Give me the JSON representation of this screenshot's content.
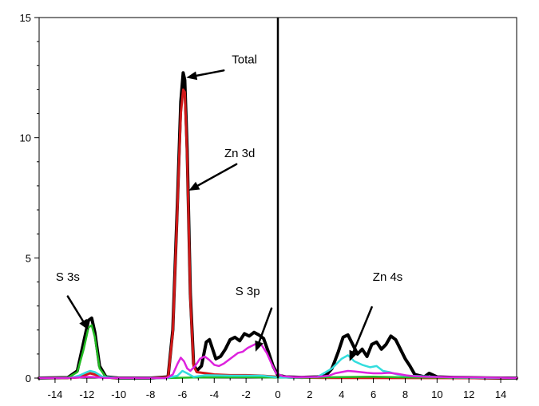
{
  "chart_data": {
    "type": "line",
    "title": "",
    "xlabel": "",
    "ylabel": "",
    "xlim": [
      -15,
      15
    ],
    "ylim": [
      0,
      15
    ],
    "x_ticks": [
      -14,
      -12,
      -10,
      -8,
      -6,
      -4,
      -2,
      0,
      2,
      4,
      6,
      8,
      10,
      12,
      14
    ],
    "x_tick_labels": [
      "-14",
      "-12",
      "-10",
      "-8",
      "-6",
      "-4",
      "-2",
      "0",
      "2",
      "4",
      "6",
      "8",
      "10",
      "12",
      "14"
    ],
    "y_ticks": [
      0,
      5,
      10,
      15
    ],
    "y_tick_labels": [
      "0",
      "5",
      "10",
      "15"
    ],
    "fermi_level_x": 0,
    "series": [
      {
        "color": "#000000",
        "x": [
          -15,
          -13.2,
          -12.6,
          -12.2,
          -11.9,
          -11.7,
          -11.5,
          -11.2,
          -10.8,
          -10,
          -8,
          -6.9,
          -6.6,
          -6.3,
          -6.1,
          -5.95,
          -5.85,
          -5.7,
          -5.5,
          -5.3,
          -5.1,
          -4.8,
          -4.5,
          -4.3,
          -4.1,
          -3.9,
          -3.6,
          -3.3,
          -3,
          -2.7,
          -2.4,
          -2.1,
          -1.8,
          -1.5,
          -1.2,
          -0.9,
          -0.6,
          -0.3,
          0,
          0.5,
          1.5,
          2.5,
          3,
          3.4,
          3.8,
          4.1,
          4.4,
          4.7,
          5.0,
          5.3,
          5.6,
          5.9,
          6.2,
          6.5,
          6.8,
          7.1,
          7.4,
          7.7,
          8.0,
          8.3,
          8.6,
          8.9,
          9.2,
          9.5,
          10.0,
          11,
          12,
          13,
          14,
          15
        ],
        "y": [
          0,
          0.02,
          0.3,
          1.5,
          2.4,
          2.5,
          1.9,
          0.5,
          0.05,
          0,
          0,
          0.05,
          2.0,
          7.5,
          11.5,
          12.7,
          12.4,
          9.5,
          3.5,
          0.6,
          0.3,
          0.5,
          1.5,
          1.6,
          1.2,
          0.8,
          0.9,
          1.2,
          1.6,
          1.7,
          1.55,
          1.85,
          1.75,
          1.9,
          1.8,
          1.65,
          1.1,
          0.5,
          0.12,
          0.05,
          0.03,
          0.05,
          0.1,
          0.4,
          1.1,
          1.7,
          1.8,
          1.4,
          1.0,
          1.2,
          0.9,
          1.4,
          1.5,
          1.2,
          1.4,
          1.75,
          1.6,
          1.2,
          0.8,
          0.5,
          0.15,
          0.1,
          0.05,
          0.2,
          0.05,
          0.03,
          0.02,
          0.01,
          0,
          0
        ]
      },
      {
        "color": "#d01818",
        "x": [
          -15,
          -13,
          -12.5,
          -12,
          -11.8,
          -11.5,
          -11,
          -10,
          -8,
          -6.9,
          -6.6,
          -6.3,
          -6.1,
          -5.95,
          -5.85,
          -5.7,
          -5.5,
          -5.3,
          -5.1,
          -4.5,
          -4,
          -3,
          -2,
          -1,
          0,
          1,
          3,
          15
        ],
        "y": [
          0,
          0.01,
          0.03,
          0.15,
          0.2,
          0.15,
          0.03,
          0,
          0,
          0.04,
          1.9,
          7.3,
          11.0,
          12.0,
          11.9,
          9.2,
          3.3,
          0.5,
          0.25,
          0.2,
          0.15,
          0.12,
          0.12,
          0.1,
          0.05,
          0.02,
          0.01,
          0
        ]
      },
      {
        "color": "#22bb22",
        "x": [
          -15,
          -13.2,
          -12.6,
          -12.2,
          -11.9,
          -11.7,
          -11.5,
          -11.2,
          -10.8,
          -10,
          -7,
          -5,
          -2,
          0,
          2,
          4,
          6,
          8,
          15
        ],
        "y": [
          0,
          0.02,
          0.25,
          1.2,
          2.1,
          2.2,
          1.7,
          0.4,
          0.04,
          0,
          0,
          0.03,
          0.04,
          0.02,
          0.02,
          0.04,
          0.06,
          0.03,
          0
        ]
      },
      {
        "color": "#33dddd",
        "x": [
          -15,
          -13,
          -12.5,
          -12,
          -11.8,
          -11.5,
          -11,
          -10,
          -7,
          -6.3,
          -6.0,
          -5.7,
          -5.3,
          -5.0,
          -4.5,
          -3,
          -1,
          0,
          1,
          2.5,
          3.4,
          4.0,
          4.4,
          4.8,
          5.3,
          5.8,
          6.2,
          6.6,
          7.0,
          7.5,
          8.0,
          9,
          10,
          11,
          12,
          15
        ],
        "y": [
          0,
          0.01,
          0.1,
          0.25,
          0.3,
          0.25,
          0.05,
          0,
          0,
          0.1,
          0.3,
          0.2,
          0.05,
          0.08,
          0.12,
          0.1,
          0.1,
          0.03,
          0.02,
          0.05,
          0.4,
          0.8,
          0.95,
          0.7,
          0.55,
          0.45,
          0.5,
          0.3,
          0.25,
          0.15,
          0.1,
          0.08,
          0.05,
          0.03,
          0.02,
          0
        ]
      },
      {
        "color": "#dd22dd",
        "x": [
          -15,
          -13,
          -12,
          -11.5,
          -11,
          -7,
          -6.6,
          -6.3,
          -6.1,
          -5.9,
          -5.7,
          -5.5,
          -5.2,
          -4.9,
          -4.6,
          -4.3,
          -4.0,
          -3.7,
          -3.4,
          -3.1,
          -2.8,
          -2.5,
          -2.2,
          -1.9,
          -1.6,
          -1.3,
          -1.0,
          -0.7,
          -0.4,
          -0.1,
          0.3,
          1,
          2.5,
          3.2,
          3.6,
          4.0,
          4.4,
          4.8,
          5.2,
          5.6,
          6.0,
          6.5,
          7.0,
          7.5,
          8.0,
          8.5,
          9.5,
          11,
          12.5,
          15
        ],
        "y": [
          0,
          0.01,
          0.05,
          0.04,
          0.01,
          0,
          0.15,
          0.6,
          0.85,
          0.7,
          0.4,
          0.3,
          0.5,
          0.8,
          0.9,
          0.75,
          0.55,
          0.5,
          0.6,
          0.75,
          0.9,
          1.05,
          1.1,
          1.25,
          1.35,
          1.45,
          1.35,
          1.05,
          0.6,
          0.2,
          0.08,
          0.04,
          0.05,
          0.1,
          0.2,
          0.25,
          0.3,
          0.28,
          0.25,
          0.22,
          0.2,
          0.2,
          0.22,
          0.18,
          0.12,
          0.08,
          0.05,
          0.04,
          0.03,
          0
        ]
      }
    ],
    "annotations": [
      {
        "text": "Total",
        "label_x": -2.1,
        "label_y": 13.1,
        "arrow_from": [
          -3.4,
          12.8
        ],
        "arrow_to": [
          -5.75,
          12.5
        ]
      },
      {
        "text": "Zn 3d",
        "label_x": -2.4,
        "label_y": 9.2,
        "arrow_from": [
          -2.6,
          8.9
        ],
        "arrow_to": [
          -5.6,
          7.8
        ]
      },
      {
        "text": "S 3s",
        "label_x": -13.2,
        "label_y": 4.05,
        "arrow_from": [
          -13.2,
          3.4
        ],
        "arrow_to": [
          -11.9,
          2.0
        ]
      },
      {
        "text": "S 3p",
        "label_x": -1.9,
        "label_y": 3.45,
        "arrow_from": [
          -0.4,
          2.9
        ],
        "arrow_to": [
          -1.4,
          1.1
        ]
      },
      {
        "text": "Zn 4s",
        "label_x": 6.9,
        "label_y": 4.05,
        "arrow_from": [
          5.9,
          2.95
        ],
        "arrow_to": [
          4.5,
          0.7
        ]
      }
    ]
  }
}
